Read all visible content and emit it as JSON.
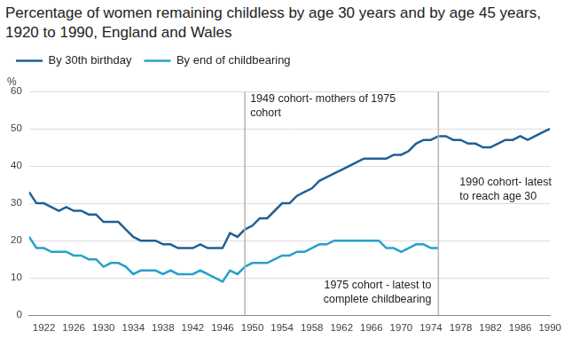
{
  "chart_data": {
    "type": "line",
    "title": "Percentage of women remaining childless by age 30 years and by age 45 years, 1920 to 1990, England and Wales",
    "y_label": "%",
    "x": [
      1920,
      1921,
      1922,
      1923,
      1924,
      1925,
      1926,
      1927,
      1928,
      1929,
      1930,
      1931,
      1932,
      1933,
      1934,
      1935,
      1936,
      1937,
      1938,
      1939,
      1940,
      1941,
      1942,
      1943,
      1944,
      1945,
      1946,
      1947,
      1948,
      1949,
      1950,
      1951,
      1952,
      1953,
      1954,
      1955,
      1956,
      1957,
      1958,
      1959,
      1960,
      1961,
      1962,
      1963,
      1964,
      1965,
      1966,
      1967,
      1968,
      1969,
      1970,
      1971,
      1972,
      1973,
      1974,
      1975,
      1976,
      1977,
      1978,
      1979,
      1980,
      1981,
      1982,
      1983,
      1984,
      1985,
      1986,
      1987,
      1988,
      1989,
      1990
    ],
    "series": [
      {
        "name": "By 30th birthday",
        "color": "#206095",
        "values": [
          33,
          30,
          30,
          29,
          28,
          29,
          28,
          28,
          27,
          27,
          25,
          25,
          25,
          23,
          21,
          20,
          20,
          20,
          19,
          19,
          18,
          18,
          18,
          19,
          18,
          18,
          18,
          22,
          21,
          23,
          24,
          26,
          26,
          28,
          30,
          30,
          32,
          33,
          34,
          36,
          37,
          38,
          39,
          40,
          41,
          42,
          42,
          42,
          42,
          43,
          43,
          44,
          46,
          47,
          47,
          48,
          48,
          47,
          47,
          46,
          46,
          45,
          45,
          46,
          47,
          47,
          48,
          47,
          48,
          49,
          50
        ]
      },
      {
        "name": "By end of childbearing",
        "color": "#27a0cc",
        "values": [
          21,
          18,
          18,
          17,
          17,
          17,
          16,
          16,
          15,
          15,
          13,
          14,
          14,
          13,
          11,
          12,
          12,
          12,
          11,
          12,
          11,
          11,
          11,
          12,
          11,
          10,
          9,
          12,
          11,
          13,
          14,
          14,
          14,
          15,
          16,
          16,
          17,
          17,
          18,
          19,
          19,
          20,
          20,
          20,
          20,
          20,
          20,
          20,
          18,
          18,
          17,
          18,
          19,
          19,
          18,
          18,
          null,
          null,
          null,
          null,
          null,
          null,
          null,
          null,
          null,
          null,
          null,
          null,
          null,
          null,
          null
        ]
      }
    ],
    "xlim": [
      1920,
      1990
    ],
    "xticks": [
      1922,
      1926,
      1930,
      1934,
      1938,
      1942,
      1946,
      1950,
      1954,
      1958,
      1962,
      1966,
      1970,
      1974,
      1978,
      1982,
      1986,
      1990
    ],
    "ylim": [
      0,
      60
    ],
    "yticks": [
      0,
      10,
      20,
      30,
      40,
      50,
      60
    ],
    "grid": true,
    "legend": "top",
    "reference_lines": [
      1949,
      1975
    ],
    "annotations": [
      "1949 cohort- mothers of 1975 cohort",
      "1975 cohort - latest to complete childbearing",
      "1990 cohort- latest to reach age 30"
    ]
  }
}
